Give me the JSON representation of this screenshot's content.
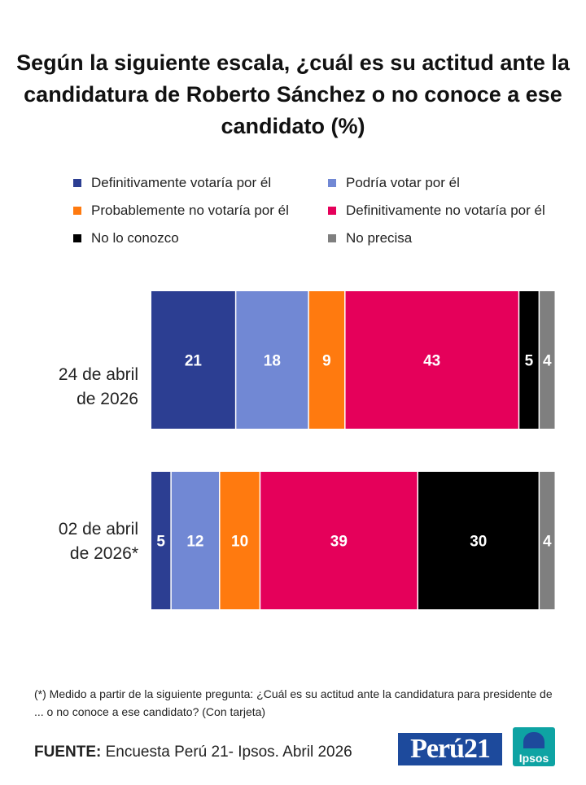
{
  "title": "Según la siguiente escala, ¿cuál es su actitud ante la candidatura de Roberto Sánchez o no conoce a ese candidato (%)",
  "legend": [
    {
      "label": "Definitivamente votaría por él",
      "color": "#2c3e92"
    },
    {
      "label": "Podría votar por él",
      "color": "#7188d4"
    },
    {
      "label": "Probablemente no votaría por él",
      "color": "#ff7a0f"
    },
    {
      "label": "Definitivamente no votaría por él",
      "color": "#e5005a"
    },
    {
      "label": "No lo conozco",
      "color": "#000000"
    },
    {
      "label": "No precisa",
      "color": "#7f7f7f"
    }
  ],
  "chart_data": {
    "type": "bar",
    "orientation": "horizontal-stacked",
    "categories": [
      "24 de abril de 2026",
      "02 de abril de 2026*"
    ],
    "series": [
      {
        "name": "Definitivamente votaría por él",
        "values": [
          21,
          5
        ]
      },
      {
        "name": "Podría votar por él",
        "values": [
          18,
          12
        ]
      },
      {
        "name": "Probablemente no votaría por él",
        "values": [
          9,
          10
        ]
      },
      {
        "name": "Definitivamente no votaría por él",
        "values": [
          43,
          39
        ]
      },
      {
        "name": "No lo conozco",
        "values": [
          5,
          30
        ]
      },
      {
        "name": "No precisa",
        "values": [
          4,
          4
        ]
      }
    ],
    "legend_position": "top",
    "grid": false
  },
  "rows": [
    {
      "label_line1": "24 de abril",
      "label_line2": "de 2026"
    },
    {
      "label_line1": "02 de abril",
      "label_line2": "de 2026*"
    }
  ],
  "footnote": "(*) Medido a partir de la siguiente pregunta:  ¿Cuál es su actitud ante la candidatura para presidente de ... o no conoce a ese candidato? (Con tarjeta)",
  "source": {
    "label": "FUENTE:",
    "text": " Encuesta Perú 21- Ipsos. Abril 2026"
  },
  "logos": {
    "peru21": "Perú21",
    "ipsos": "Ipsos"
  }
}
